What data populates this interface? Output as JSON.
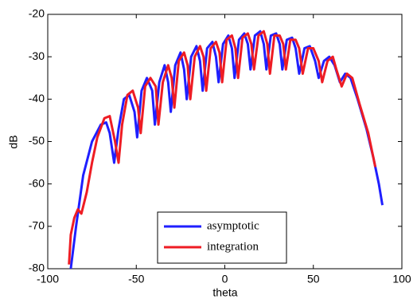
{
  "chart_data": {
    "type": "line",
    "xlabel": "theta",
    "ylabel": "dB",
    "xlim": [
      -100,
      100
    ],
    "xticks": [
      -100,
      -50,
      0,
      50,
      100
    ],
    "ylim": [
      -80,
      -20
    ],
    "yticks": [
      -80,
      -70,
      -60,
      -50,
      -40,
      -30,
      -20
    ],
    "legend": "lower center",
    "series": [
      {
        "name": "asymptotic",
        "color": "#1f1fff",
        "x": [
          -87,
          -84,
          -80,
          -75,
          -70,
          -67,
          -65,
          -62.5,
          -60,
          -57,
          -54,
          -51,
          -49.5,
          -47,
          -44,
          -41,
          -39.5,
          -37,
          -34,
          -32,
          -30.5,
          -28,
          -25,
          -23,
          -21.5,
          -19,
          -16,
          -14,
          -12.5,
          -10,
          -7,
          -5,
          -3.5,
          -1,
          2,
          4,
          5.5,
          8,
          11,
          13,
          14.5,
          17,
          20,
          22,
          23.5,
          26,
          29,
          31,
          32.5,
          35,
          38,
          40,
          42,
          45,
          48,
          51,
          53,
          56,
          59,
          62,
          65,
          68,
          71,
          75,
          80,
          84,
          87,
          89
        ],
        "values": [
          -80,
          -70,
          -58,
          -50,
          -46,
          -45.5,
          -48,
          -55,
          -47,
          -40,
          -39,
          -43,
          -49,
          -38,
          -35,
          -38,
          -46,
          -36,
          -32,
          -36,
          -43,
          -32,
          -29,
          -33,
          -40,
          -30,
          -27.5,
          -31,
          -38,
          -28,
          -26.5,
          -30,
          -36,
          -27,
          -25,
          -28,
          -35,
          -26,
          -24.5,
          -27,
          -33,
          -25,
          -24,
          -27,
          -33,
          -25,
          -24.5,
          -27,
          -33,
          -26,
          -25.5,
          -28,
          -34,
          -28,
          -27.5,
          -31,
          -35,
          -31,
          -30,
          -32,
          -36,
          -34,
          -35,
          -40,
          -47,
          -54,
          -60,
          -65
        ]
      },
      {
        "name": "integration",
        "color": "#ee1c24",
        "x": [
          -88,
          -87,
          -85,
          -83,
          -81,
          -78,
          -75,
          -72,
          -68,
          -65,
          -62,
          -60,
          -58,
          -55,
          -52,
          -49,
          -47.5,
          -45,
          -42,
          -39,
          -37.5,
          -35,
          -32,
          -30,
          -28.5,
          -26,
          -23,
          -21,
          -19.5,
          -17,
          -14,
          -12,
          -10.5,
          -8,
          -5,
          -3,
          -1.5,
          1,
          4,
          6,
          7.5,
          10,
          13,
          15,
          16.5,
          19,
          22,
          24,
          25.5,
          28,
          31,
          33,
          34.5,
          37,
          40,
          42,
          44,
          47,
          50,
          53,
          55,
          58,
          61,
          63,
          66,
          69,
          72,
          76,
          81,
          85
        ],
        "values": [
          -79,
          -72,
          -68,
          -66,
          -67,
          -62,
          -55,
          -49,
          -44.5,
          -44,
          -50,
          -55,
          -46,
          -39,
          -38,
          -42,
          -48,
          -37,
          -35,
          -37,
          -46,
          -36,
          -32,
          -35,
          -42,
          -31,
          -29,
          -32,
          -40,
          -30,
          -27.5,
          -30,
          -38,
          -28,
          -26.5,
          -29,
          -36,
          -26,
          -25,
          -28,
          -35,
          -25.5,
          -24.5,
          -27,
          -33,
          -25,
          -24,
          -27,
          -34,
          -25,
          -25,
          -27,
          -33,
          -26,
          -26,
          -28,
          -34,
          -28,
          -28,
          -31,
          -36,
          -31,
          -30,
          -33,
          -37,
          -34,
          -35,
          -41,
          -48,
          -56
        ]
      }
    ]
  }
}
